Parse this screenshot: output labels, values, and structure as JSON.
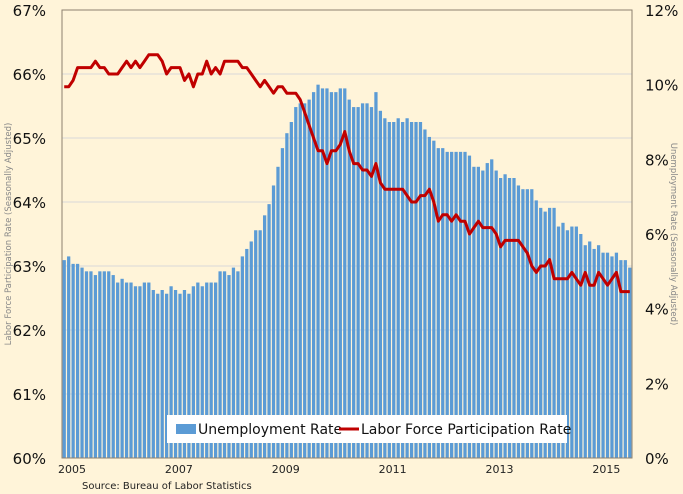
{
  "chart_data": {
    "type": "bar+line",
    "title": "",
    "source": "Source: Bureau of Labor Statistics",
    "x_start": "2005-01",
    "x_frequency": "monthly",
    "x_tick_labels": [
      "2005",
      "2007",
      "2009",
      "2011",
      "2013",
      "2015"
    ],
    "left_axis": {
      "label": "Labor Force Participation  Rate (Seasonally Adjusted)",
      "range": [
        60,
        67
      ],
      "ticks": [
        "60%",
        "61%",
        "62%",
        "63%",
        "64%",
        "65%",
        "66%",
        "67%"
      ]
    },
    "right_axis": {
      "label": "Unemployment  Rate (Seasonally Adjusted)",
      "range": [
        0,
        12
      ],
      "ticks": [
        "0%",
        "2%",
        "4%",
        "6%",
        "8%",
        "10%",
        "12%"
      ]
    },
    "grid": true,
    "legend_position": "bottom-center",
    "series": [
      {
        "name": "Unemployment Rate",
        "type": "bar",
        "axis": "right",
        "color": "#5b9bd5",
        "values": [
          5.3,
          5.4,
          5.2,
          5.2,
          5.1,
          5.0,
          5.0,
          4.9,
          5.0,
          5.0,
          5.0,
          4.9,
          4.7,
          4.8,
          4.7,
          4.7,
          4.6,
          4.6,
          4.7,
          4.7,
          4.5,
          4.4,
          4.5,
          4.4,
          4.6,
          4.5,
          4.4,
          4.5,
          4.4,
          4.6,
          4.7,
          4.6,
          4.7,
          4.7,
          4.7,
          5.0,
          5.0,
          4.9,
          5.1,
          5.0,
          5.4,
          5.6,
          5.8,
          6.1,
          6.1,
          6.5,
          6.8,
          7.3,
          7.8,
          8.3,
          8.7,
          9.0,
          9.4,
          9.5,
          9.5,
          9.6,
          9.8,
          10.0,
          9.9,
          9.9,
          9.8,
          9.8,
          9.9,
          9.9,
          9.6,
          9.4,
          9.4,
          9.5,
          9.5,
          9.4,
          9.8,
          9.3,
          9.1,
          9.0,
          9.0,
          9.1,
          9.0,
          9.1,
          9.0,
          9.0,
          9.0,
          8.8,
          8.6,
          8.5,
          8.3,
          8.3,
          8.2,
          8.2,
          8.2,
          8.2,
          8.2,
          8.1,
          7.8,
          7.8,
          7.7,
          7.9,
          8.0,
          7.7,
          7.5,
          7.6,
          7.5,
          7.5,
          7.3,
          7.2,
          7.2,
          7.2,
          6.9,
          6.7,
          6.6,
          6.7,
          6.7,
          6.2,
          6.3,
          6.1,
          6.2,
          6.2,
          6.0,
          5.7,
          5.8,
          5.6,
          5.7,
          5.5,
          5.5,
          5.4,
          5.5,
          5.3,
          5.3,
          5.1
        ]
      },
      {
        "name": "Labor Force Participation Rate",
        "type": "line",
        "axis": "left",
        "color": "#c00000",
        "values": [
          65.8,
          65.8,
          65.9,
          66.1,
          66.1,
          66.1,
          66.1,
          66.2,
          66.1,
          66.1,
          66.0,
          66.0,
          66.0,
          66.1,
          66.2,
          66.1,
          66.2,
          66.1,
          66.2,
          66.3,
          66.3,
          66.3,
          66.2,
          66.0,
          66.1,
          66.1,
          66.1,
          65.9,
          66.0,
          65.8,
          66.0,
          66.0,
          66.2,
          66.0,
          66.1,
          66.0,
          66.2,
          66.2,
          66.2,
          66.2,
          66.1,
          66.1,
          66.0,
          65.9,
          65.8,
          65.9,
          65.8,
          65.7,
          65.8,
          65.8,
          65.7,
          65.7,
          65.7,
          65.6,
          65.4,
          65.2,
          65.0,
          64.8,
          64.8,
          64.6,
          64.8,
          64.8,
          64.9,
          65.1,
          64.8,
          64.6,
          64.6,
          64.5,
          64.5,
          64.4,
          64.6,
          64.3,
          64.2,
          64.2,
          64.2,
          64.2,
          64.2,
          64.1,
          64.0,
          64.0,
          64.1,
          64.1,
          64.2,
          64.0,
          63.7,
          63.8,
          63.8,
          63.7,
          63.8,
          63.7,
          63.7,
          63.5,
          63.6,
          63.7,
          63.6,
          63.6,
          63.6,
          63.5,
          63.3,
          63.4,
          63.4,
          63.4,
          63.4,
          63.3,
          63.2,
          63.0,
          62.9,
          63.0,
          63.0,
          63.1,
          62.8,
          62.8,
          62.8,
          62.8,
          62.9,
          62.8,
          62.7,
          62.9,
          62.7,
          62.7,
          62.9,
          62.8,
          62.7,
          62.8,
          62.9,
          62.6,
          62.6,
          62.6
        ]
      }
    ]
  }
}
